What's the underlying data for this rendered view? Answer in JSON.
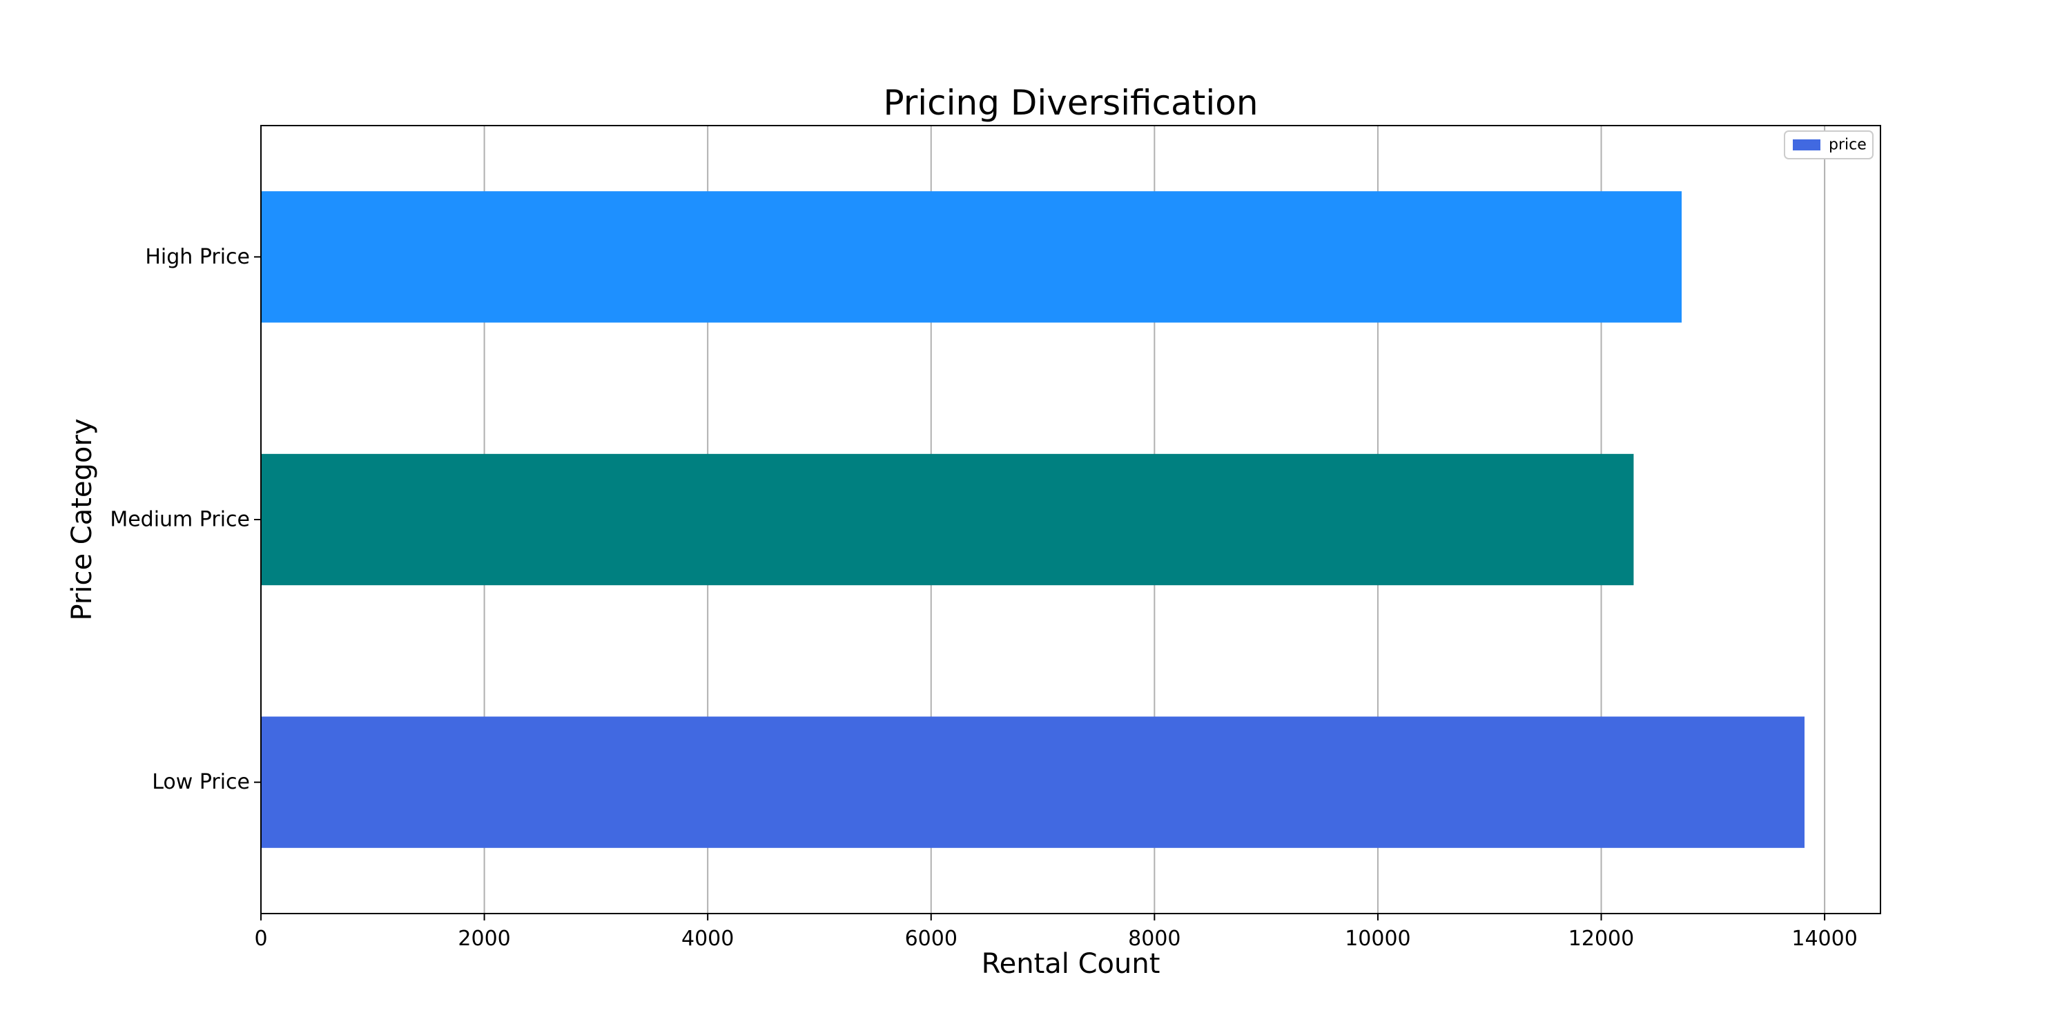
{
  "chart_data": {
    "type": "bar",
    "orientation": "horizontal",
    "title": "Pricing Diversification",
    "xlabel": "Rental Count",
    "ylabel": "Price Category",
    "categories": [
      "Low Price",
      "Medium Price",
      "High Price"
    ],
    "series": [
      {
        "name": "price",
        "values": [
          13820,
          12290,
          12720
        ],
        "colors": [
          "#4169e1",
          "#008080",
          "#1e90ff"
        ]
      }
    ],
    "xlim": [
      0,
      14500
    ],
    "xticks": [
      0,
      2000,
      4000,
      6000,
      8000,
      10000,
      12000,
      14000
    ],
    "grid": "x",
    "legend_position": "upper-right",
    "legend_swatch_color": "#4169e1"
  }
}
